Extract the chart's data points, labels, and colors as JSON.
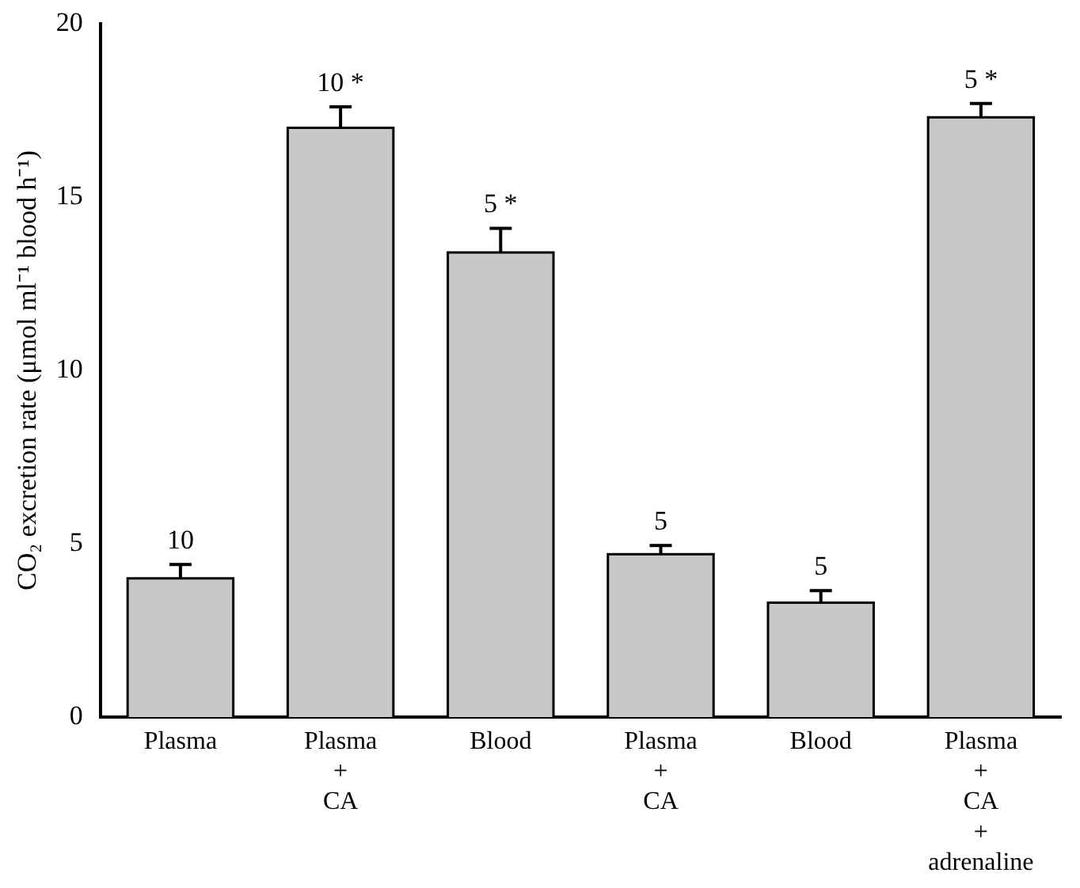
{
  "chart_data": {
    "type": "bar",
    "ylabel": "CO₂ excretion rate (μmol ml⁻¹ blood h⁻¹)",
    "categories": [
      "Plasma",
      "Plasma\n+\nCA",
      "Blood",
      "Plasma\n+\nCA",
      "Blood",
      "Plasma\n+\nCA\n+\nadrenaline"
    ],
    "values": [
      4.0,
      17.0,
      13.4,
      4.7,
      3.3,
      17.3
    ],
    "errors": [
      0.4,
      0.6,
      0.7,
      0.25,
      0.35,
      0.4
    ],
    "annotations": [
      "10",
      "10 *",
      "5 *",
      "5",
      "5",
      "5 *"
    ],
    "color": "#c8c8c8",
    "ylim": [
      0,
      20
    ],
    "yticks": [
      0,
      5,
      10,
      15,
      20
    ],
    "grid": false,
    "legend": false
  }
}
